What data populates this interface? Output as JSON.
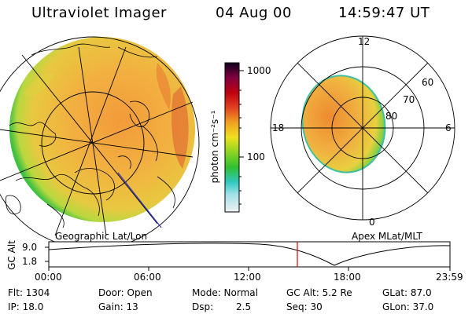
{
  "header": {
    "instrument": "Ultraviolet Imager",
    "date": "04 Aug 00",
    "time": "14:59:47 UT"
  },
  "colorbar": {
    "unit_label": "photon cm⁻²s⁻¹",
    "ticks": [
      "1000",
      "100"
    ]
  },
  "polar_plot": {
    "mlt_labels": {
      "top": "12",
      "left": "18",
      "right": "6",
      "bottom": "0"
    },
    "lat_labels": [
      "60",
      "70",
      "80"
    ]
  },
  "panel_labels": {
    "left": "Geographic Lat/Lon",
    "right": "Apex MLat/MLT"
  },
  "timeline": {
    "y_axis": "GC Alt",
    "y_ticks": [
      "9.0",
      "1.8"
    ],
    "x_ticks": [
      "00:00",
      "06:00",
      "12:00",
      "18:00",
      "23:59"
    ]
  },
  "info": {
    "flt": "Flt: 1304",
    "ip": "IP: 18.0",
    "door": "Door: Open",
    "gain": "Gain: 13",
    "mode": "Mode: Normal",
    "dsp_label": "Dsp:",
    "dsp_value": "2.5",
    "gcalt": "GC Alt: 5.2 Re",
    "seq": "Seq: 30",
    "glat": "GLat: 87.0",
    "glon": "GLon: 37.0"
  },
  "colors": {
    "disk_main": "#f0a030",
    "disk_edge": "#30c030",
    "timeline_marker": "#e00000"
  }
}
